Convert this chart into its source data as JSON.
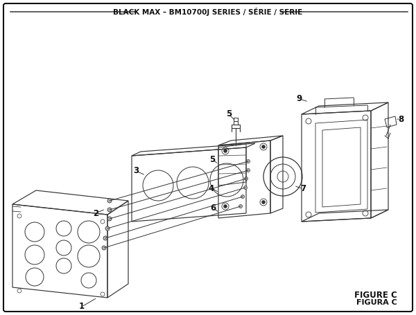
{
  "title": "BLACK MAX – BM10700J SERIES / SÉRIE / SERIE",
  "figure_label": "FIGURE C",
  "figura_label": "FIGURA C",
  "bg_color": "#ffffff",
  "border_color": "#111111",
  "line_color": "#333333",
  "title_fontsize": 7.5,
  "label_fontsize": 8.5
}
